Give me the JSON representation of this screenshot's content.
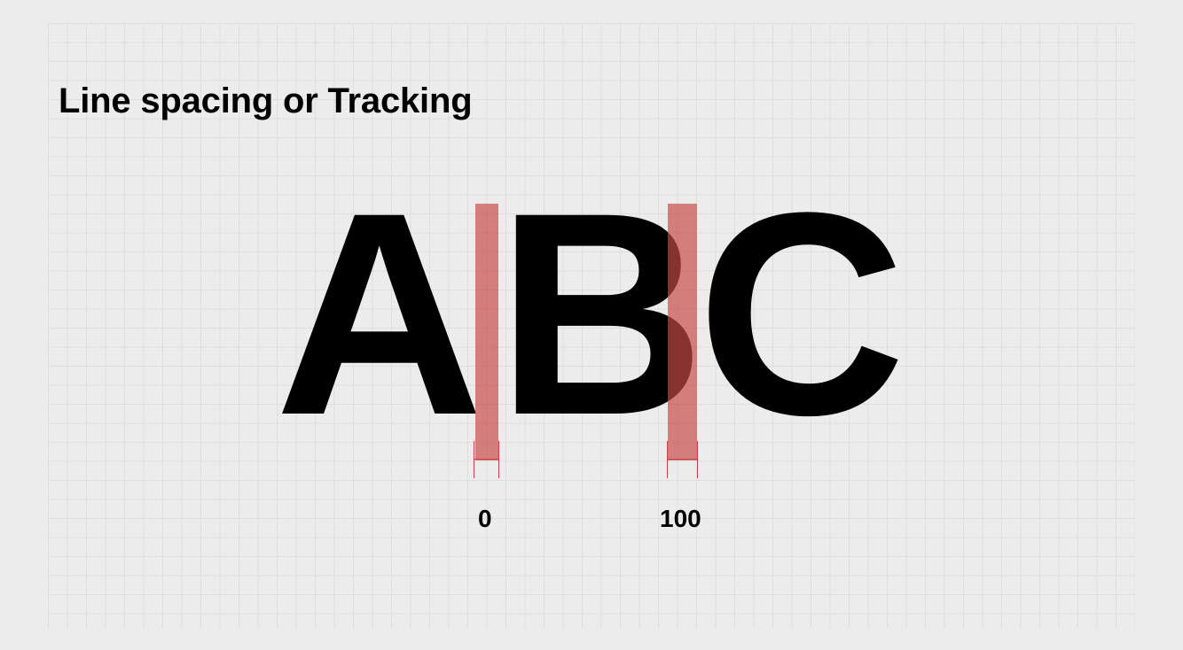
{
  "title": "Line spacing or Tracking",
  "letters": [
    "A",
    "B",
    "C"
  ],
  "tracking_markers": [
    {
      "value": "0"
    },
    {
      "value": "100"
    }
  ],
  "colors": {
    "background": "#ececec",
    "grid": "#dedede",
    "highlight": "#c94848",
    "text": "#000000"
  }
}
